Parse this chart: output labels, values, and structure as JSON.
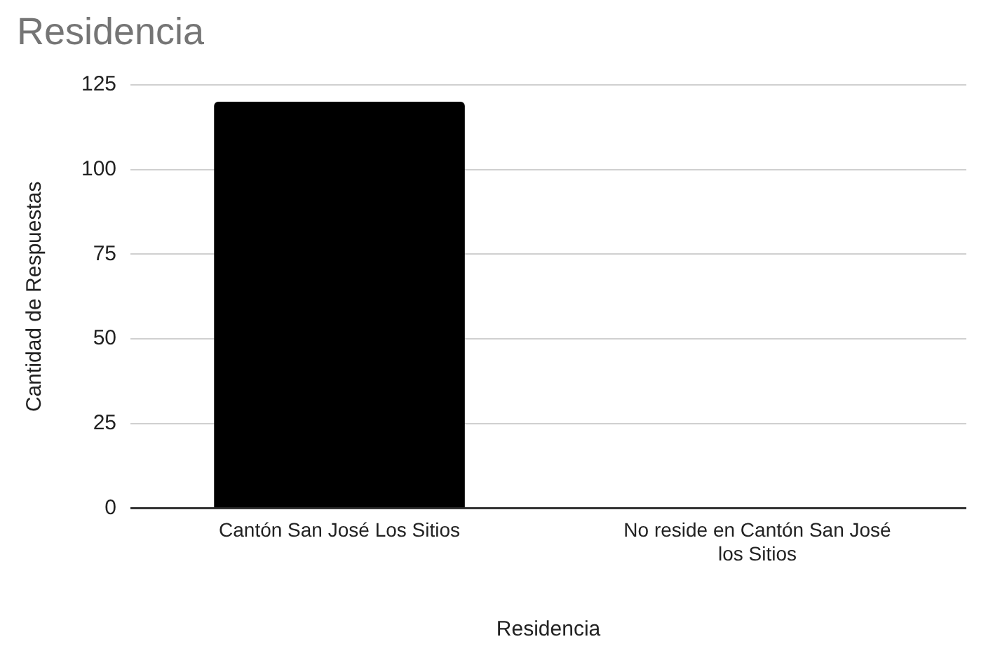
{
  "chart_data": {
    "type": "bar",
    "title": "Residencia",
    "xlabel": "Residencia",
    "ylabel": "Cantidad de Respuestas",
    "categories": [
      "Cantón San José Los Sitios",
      "No reside en Cantón San José los Sitios"
    ],
    "values": [
      120,
      0
    ],
    "color": "#000000",
    "ylim": [
      0,
      125
    ],
    "yticks": [
      0,
      25,
      50,
      75,
      100,
      125
    ],
    "grid": "y",
    "legend": false
  }
}
